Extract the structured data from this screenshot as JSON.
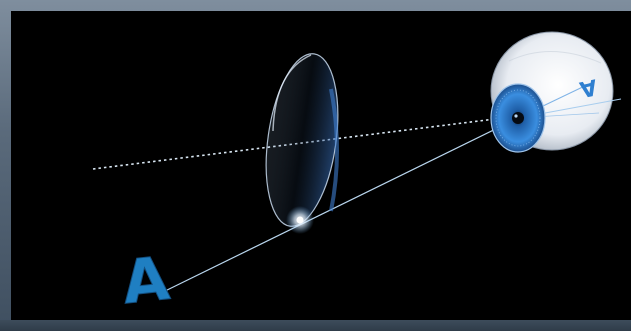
{
  "diagram": {
    "object_letter": "A",
    "image_letter": "A",
    "colors": {
      "background": "#000000",
      "letter_blue": "#1f7fc2",
      "ray": "#b9d6ee",
      "iris": "#2f7fd0",
      "lens_edge": "#cfe0f2",
      "sclera": "#f2f4f7"
    }
  }
}
